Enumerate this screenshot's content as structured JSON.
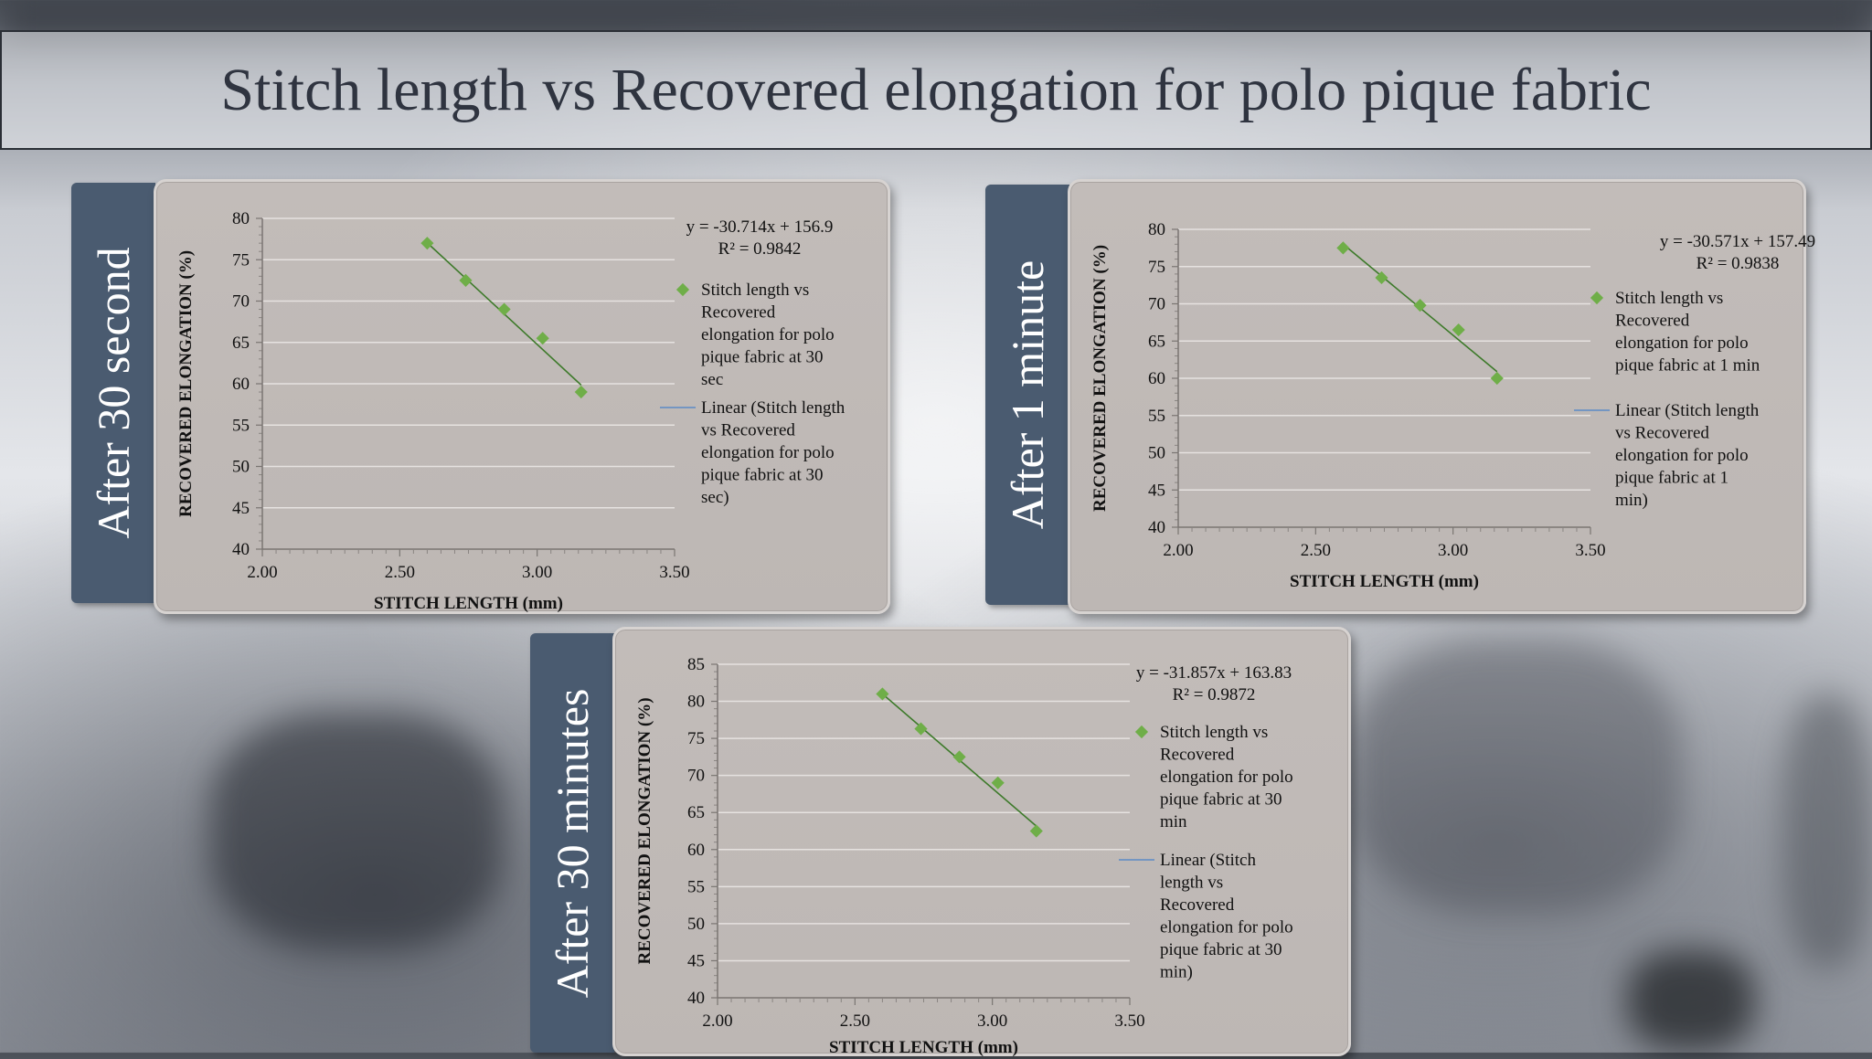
{
  "slide": {
    "title": "Stitch length vs Recovered elongation for polo pique fabric"
  },
  "colors": {
    "marker": "#6fae48",
    "trend_line": "#3d7a2a",
    "legend_line": "#5b8ac6",
    "tab": "#4a5b70"
  },
  "chart_data": [
    {
      "type": "scatter",
      "tab_label": "After 30 second",
      "xlabel": "STITCH LENGTH (mm)",
      "ylabel": "RECOVERED ELONGATION (%)",
      "xlim": [
        2.0,
        3.5
      ],
      "ylim": [
        40,
        80
      ],
      "x_ticks": [
        "2.00",
        "2.50",
        "3.00",
        "3.50"
      ],
      "y_ticks": [
        "40",
        "45",
        "50",
        "55",
        "60",
        "65",
        "70",
        "75",
        "80"
      ],
      "x_tick_values": [
        2.0,
        2.5,
        3.0,
        3.5
      ],
      "y_tick_values": [
        40,
        45,
        50,
        55,
        60,
        65,
        70,
        75,
        80
      ],
      "grid": true,
      "legend_placement": "right",
      "series": [
        {
          "name": "Stitch length vs Recovered elongation for polo pique fabric at 30 sec",
          "x": [
            2.6,
            2.74,
            2.88,
            3.02,
            3.16
          ],
          "y": [
            77.0,
            72.5,
            69.0,
            65.5,
            59.0
          ]
        }
      ],
      "trendline": {
        "slope": -30.714,
        "intercept": 156.9,
        "x_range": [
          2.6,
          3.16
        ]
      },
      "equation": "y = -30.714x + 156.9",
      "r2": "R² = 0.9842",
      "legend_marker_lines": [
        "Stitch length vs",
        "Recovered",
        "elongation for polo",
        "pique fabric at 30",
        "sec"
      ],
      "legend_line_lines": [
        "Linear (Stitch length",
        "vs Recovered",
        "elongation for polo",
        "pique fabric at 30",
        "sec)"
      ]
    },
    {
      "type": "scatter",
      "tab_label": "After 1 minute",
      "xlabel": "STITCH LENGTH (mm)",
      "ylabel": "RECOVERED ELONGATION (%)",
      "xlim": [
        2.0,
        3.5
      ],
      "ylim": [
        40,
        80
      ],
      "x_ticks": [
        "2.00",
        "2.50",
        "3.00",
        "3.50"
      ],
      "y_ticks": [
        "40",
        "45",
        "50",
        "55",
        "60",
        "65",
        "70",
        "75",
        "80"
      ],
      "x_tick_values": [
        2.0,
        2.5,
        3.0,
        3.5
      ],
      "y_tick_values": [
        40,
        45,
        50,
        55,
        60,
        65,
        70,
        75,
        80
      ],
      "grid": true,
      "legend_placement": "right",
      "series": [
        {
          "name": "Stitch length vs Recovered elongation for polo pique fabric at 1 min",
          "x": [
            2.6,
            2.74,
            2.88,
            3.02,
            3.16
          ],
          "y": [
            77.5,
            73.5,
            69.8,
            66.5,
            60.0
          ]
        }
      ],
      "trendline": {
        "slope": -30.571,
        "intercept": 157.49,
        "x_range": [
          2.6,
          3.16
        ]
      },
      "equation": "y = -30.571x + 157.49",
      "r2": "R² = 0.9838",
      "legend_marker_lines": [
        "Stitch length vs",
        "Recovered",
        "elongation for polo",
        "pique fabric at 1 min"
      ],
      "legend_line_lines": [
        "Linear (Stitch length",
        "vs Recovered",
        "elongation for polo",
        "pique fabric at 1",
        "min)"
      ]
    },
    {
      "type": "scatter",
      "tab_label": "After 30 minutes",
      "xlabel": "STITCH LENGTH (mm)",
      "ylabel": "RECOVERED ELONGATION (%)",
      "xlim": [
        2.0,
        3.5
      ],
      "ylim": [
        40,
        85
      ],
      "x_ticks": [
        "2.00",
        "2.50",
        "3.00",
        "3.50"
      ],
      "y_ticks": [
        "40",
        "45",
        "50",
        "55",
        "60",
        "65",
        "70",
        "75",
        "80",
        "85"
      ],
      "x_tick_values": [
        2.0,
        2.5,
        3.0,
        3.5
      ],
      "y_tick_values": [
        40,
        45,
        50,
        55,
        60,
        65,
        70,
        75,
        80,
        85
      ],
      "grid": true,
      "legend_placement": "right",
      "series": [
        {
          "name": "Stitch length vs Recovered elongation for polo pique fabric at 30 min",
          "x": [
            2.6,
            2.74,
            2.88,
            3.02,
            3.16
          ],
          "y": [
            81.0,
            76.3,
            72.5,
            69.0,
            62.5
          ]
        }
      ],
      "trendline": {
        "slope": -31.857,
        "intercept": 163.83,
        "x_range": [
          2.6,
          3.16
        ]
      },
      "equation": "y = -31.857x + 163.83",
      "r2": "R² = 0.9872",
      "legend_marker_lines": [
        "Stitch length vs",
        "Recovered",
        "elongation for polo",
        "pique fabric at 30",
        "min"
      ],
      "legend_line_lines": [
        "Linear (Stitch",
        "length vs",
        "Recovered",
        "elongation for polo",
        "pique fabric at 30",
        "min)"
      ]
    }
  ]
}
